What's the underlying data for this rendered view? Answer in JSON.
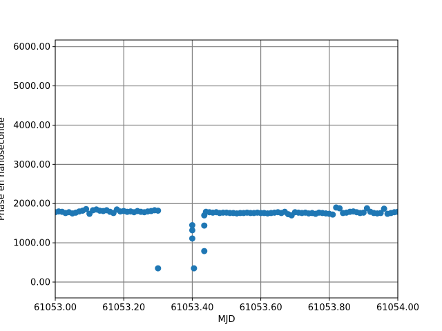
{
  "chart_data": {
    "type": "scatter",
    "xlabel": "MJD",
    "ylabel": "Phase en nanoseconde",
    "color": "#1f77b4",
    "grid": true,
    "xlim": [
      61053.0,
      61054.0
    ],
    "ylim": [
      -404,
      6170
    ],
    "xticks": [
      {
        "value": 61053.0,
        "label": "61053.00"
      },
      {
        "value": 61053.2,
        "label": "61053.20"
      },
      {
        "value": 61053.4,
        "label": "61053.40"
      },
      {
        "value": 61053.6,
        "label": "61053.60"
      },
      {
        "value": 61053.8,
        "label": "61053.80"
      },
      {
        "value": 61054.0,
        "label": "61054.00"
      }
    ],
    "yticks": [
      {
        "value": 0,
        "label": "0.00"
      },
      {
        "value": 1000,
        "label": "1000.00"
      },
      {
        "value": 2000,
        "label": "2000.00"
      },
      {
        "value": 3000,
        "label": "3000.00"
      },
      {
        "value": 4000,
        "label": "4000.00"
      },
      {
        "value": 5000,
        "label": "5000.00"
      },
      {
        "value": 6000,
        "label": "6000.00"
      }
    ],
    "x": [
      61053.0,
      61053.01,
      61053.02,
      61053.03,
      61053.04,
      61053.05,
      61053.06,
      61053.07,
      61053.08,
      61053.09,
      61053.1,
      61053.11,
      61053.12,
      61053.13,
      61053.14,
      61053.15,
      61053.16,
      61053.17,
      61053.18,
      61053.19,
      61053.2,
      61053.21,
      61053.22,
      61053.23,
      61053.24,
      61053.25,
      61053.26,
      61053.27,
      61053.28,
      61053.29,
      61053.3,
      61053.3,
      61053.4,
      61053.4,
      61053.4,
      61053.405,
      61053.435,
      61053.435,
      61053.435,
      61053.44,
      61053.45,
      61053.46,
      61053.47,
      61053.48,
      61053.49,
      61053.5,
      61053.51,
      61053.52,
      61053.53,
      61053.54,
      61053.55,
      61053.56,
      61053.57,
      61053.58,
      61053.59,
      61053.6,
      61053.61,
      61053.62,
      61053.63,
      61053.64,
      61053.65,
      61053.66,
      61053.67,
      61053.68,
      61053.69,
      61053.7,
      61053.71,
      61053.72,
      61053.73,
      61053.74,
      61053.75,
      61053.76,
      61053.77,
      61053.78,
      61053.79,
      61053.8,
      61053.81,
      61053.82,
      61053.83,
      61053.84,
      61053.85,
      61053.86,
      61053.87,
      61053.88,
      61053.89,
      61053.9,
      61053.91,
      61053.92,
      61053.93,
      61053.94,
      61053.95,
      61053.96,
      61053.97,
      61053.98,
      61053.99,
      61054.0
    ],
    "values": [
      1780,
      1800,
      1790,
      1760,
      1780,
      1750,
      1770,
      1800,
      1820,
      1860,
      1740,
      1830,
      1850,
      1820,
      1810,
      1830,
      1790,
      1760,
      1850,
      1800,
      1810,
      1790,
      1800,
      1780,
      1810,
      1790,
      1780,
      1800,
      1810,
      1830,
      1820,
      350,
      1450,
      1320,
      1110,
      350,
      1440,
      790,
      1700,
      1790,
      1780,
      1770,
      1780,
      1760,
      1770,
      1770,
      1760,
      1760,
      1750,
      1760,
      1760,
      1770,
      1760,
      1760,
      1770,
      1760,
      1760,
      1750,
      1760,
      1770,
      1780,
      1760,
      1790,
      1730,
      1700,
      1780,
      1770,
      1760,
      1770,
      1750,
      1760,
      1740,
      1770,
      1760,
      1750,
      1740,
      1720,
      1900,
      1880,
      1760,
      1770,
      1790,
      1800,
      1780,
      1760,
      1770,
      1880,
      1790,
      1760,
      1750,
      1760,
      1870,
      1740,
      1760,
      1780,
      1790
    ]
  }
}
